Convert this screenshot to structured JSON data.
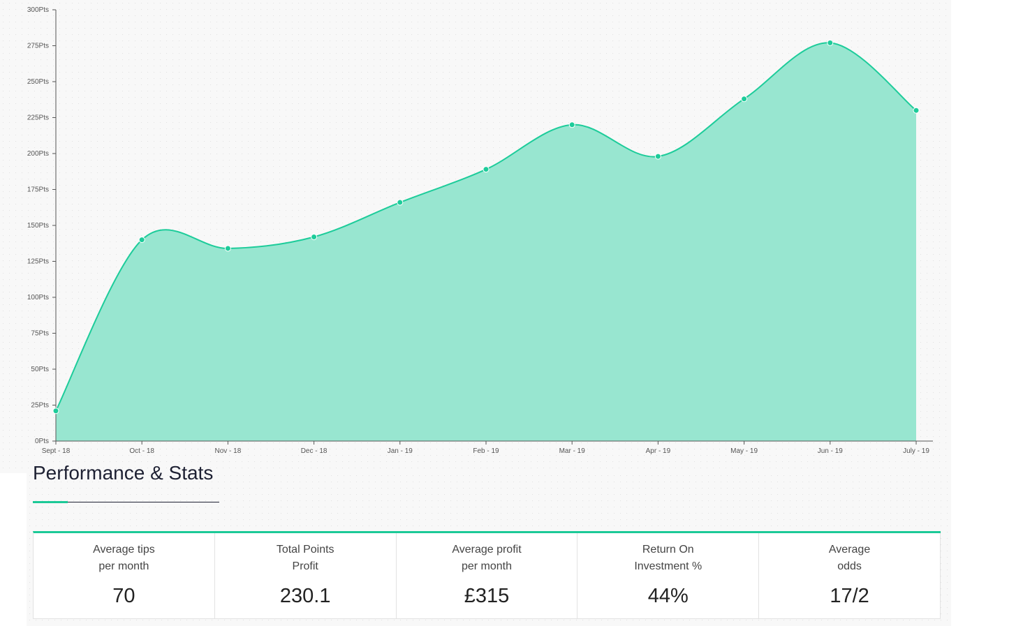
{
  "chart_data": {
    "type": "area",
    "categories": [
      "Sept - 18",
      "Oct - 18",
      "Nov - 18",
      "Dec - 18",
      "Jan - 19",
      "Feb - 19",
      "Mar - 19",
      "Apr - 19",
      "May - 19",
      "Jun - 19",
      "July - 19"
    ],
    "values": [
      21,
      140,
      134,
      142,
      166,
      189,
      220,
      198,
      238,
      277,
      230
    ],
    "ylim": [
      0,
      300
    ],
    "yticks": [
      0,
      25,
      50,
      75,
      100,
      125,
      150,
      175,
      200,
      225,
      250,
      275,
      300
    ],
    "ytick_suffix": "Pts",
    "xlabel": "",
    "ylabel": "",
    "title": "",
    "colors": {
      "line": "#1dcc9a",
      "fill": "#98e6d0",
      "axis": "#555555"
    }
  },
  "section": {
    "title": "Performance & Stats"
  },
  "stats": [
    {
      "label1": "Average tips",
      "label2": "per month",
      "value": "70"
    },
    {
      "label1": "Total Points",
      "label2": "Profit",
      "value": "230.1"
    },
    {
      "label1": "Average profit",
      "label2": "per month",
      "value": "£315"
    },
    {
      "label1": "Return On",
      "label2": "Investment %",
      "value": "44%"
    },
    {
      "label1": "Average",
      "label2": "odds",
      "value": "17/2"
    }
  ]
}
